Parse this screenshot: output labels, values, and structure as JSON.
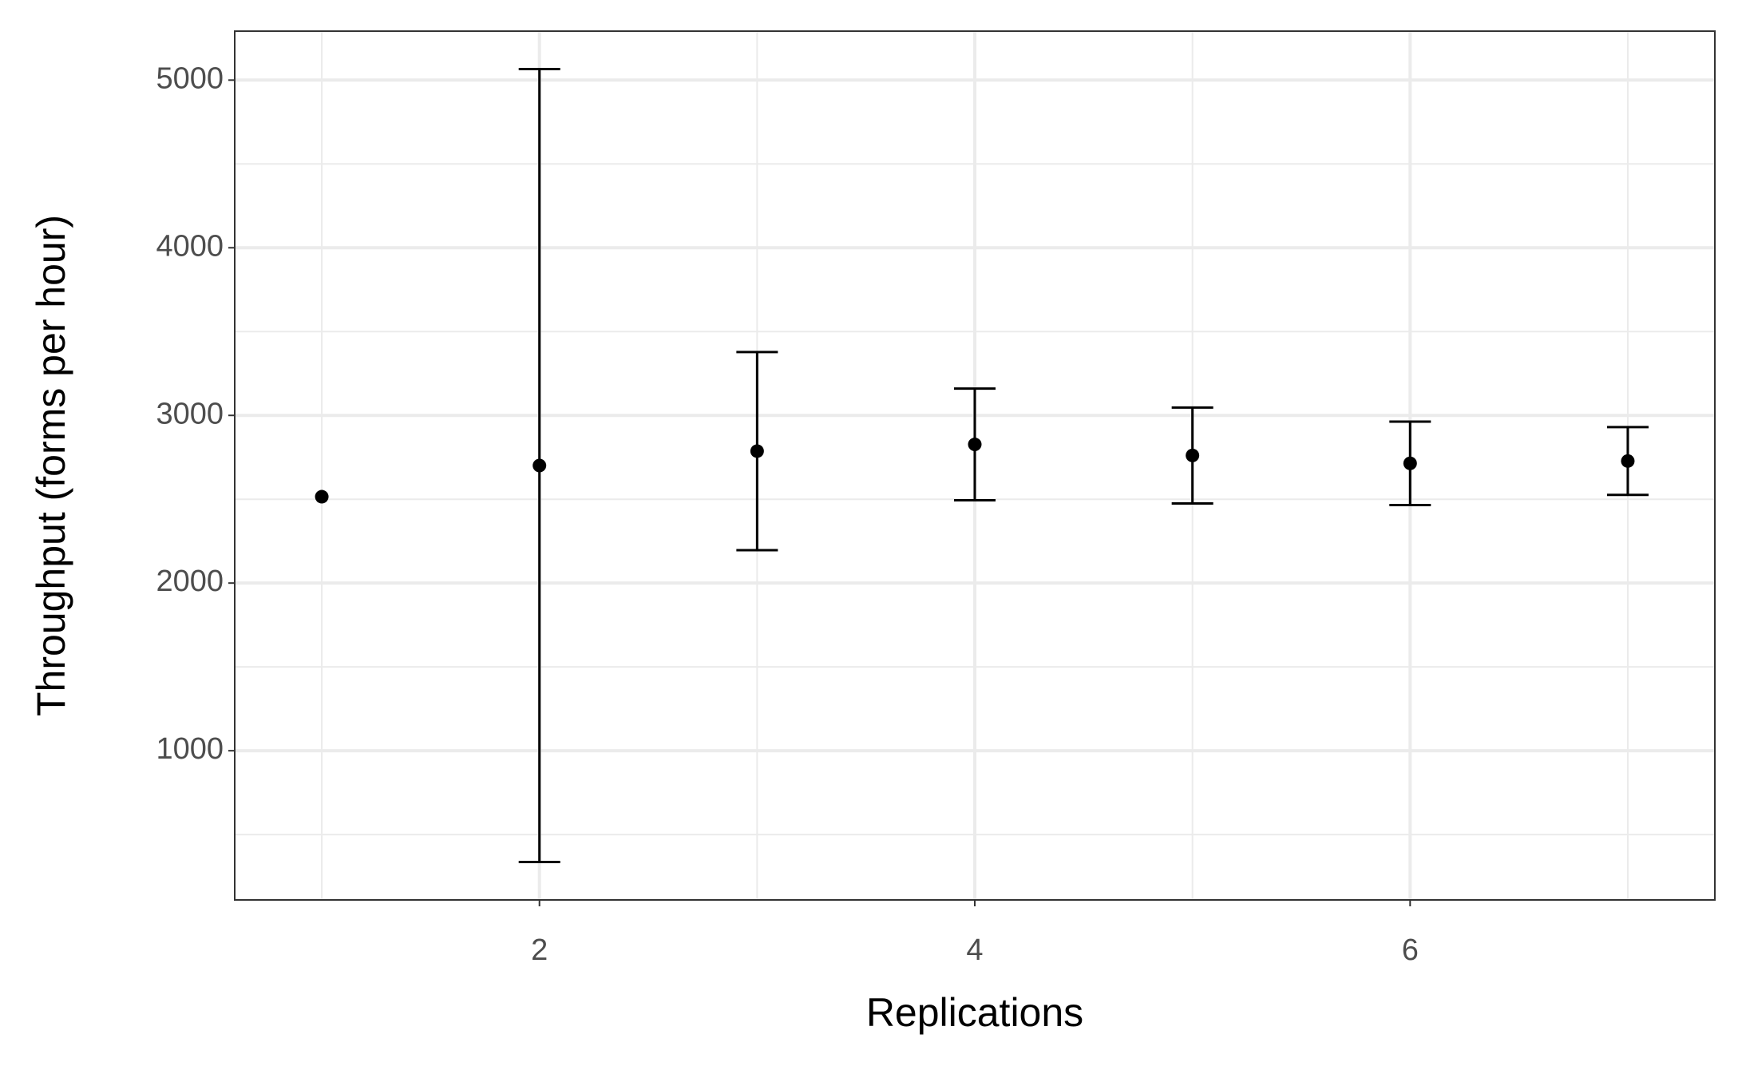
{
  "chart_data": {
    "type": "errorbar",
    "x_label": "Replications",
    "y_label": "Throughput (forms per hour)",
    "x": [
      1,
      2,
      3,
      4,
      5,
      6,
      7
    ],
    "values": [
      2515,
      2701,
      2787,
      2827,
      2761,
      2714,
      2728
    ],
    "errors": [
      null,
      2365,
      591,
      333,
      286,
      249,
      202
    ],
    "color": "#000000",
    "xlim": [
      0.6,
      7.4
    ],
    "xticks": [
      2,
      4,
      6
    ],
    "xminor": [
      1,
      3,
      5,
      7
    ],
    "ylim": [
      110,
      5292
    ],
    "yticks": [
      1000,
      2000,
      3000,
      4000,
      5000
    ],
    "yminor": [
      500,
      1500,
      2500,
      3500,
      4500
    ],
    "grid": true
  }
}
